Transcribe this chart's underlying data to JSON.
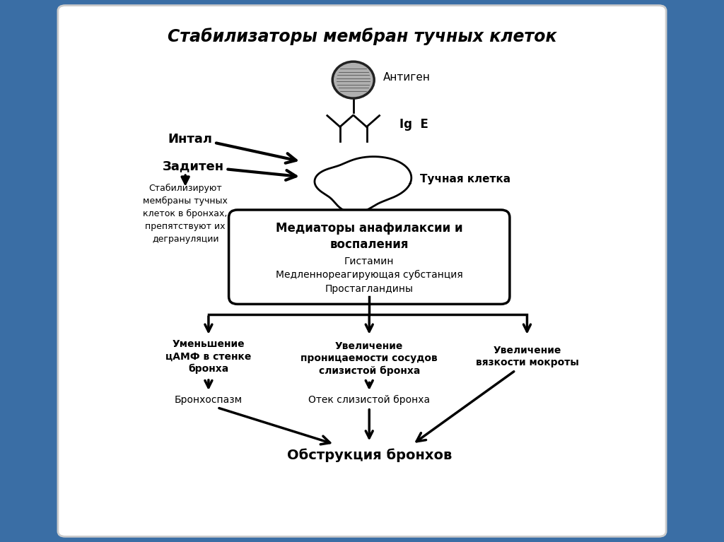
{
  "title": "Стабилизаторы мембран тучных клеток",
  "bg_outer": "#3a6ea5",
  "bg_inner": "#ffffff",
  "text_color": "#000000",
  "antigen_label": "Антиген",
  "ige_label": "Ig  E",
  "mast_cell_label": "Тучная клетка",
  "intal_label": "Интал",
  "zaditen_label": "Задитен",
  "stabilize_text": "Стабилизируют\nмембраны тучных\nклеток в бронхах,\nпрепятствуют их\nдегрануляции",
  "mediators_title": "Медиаторы анафилаксии и\nвоспаления",
  "mediators_list": "Гистамин\nМедленнореагирующая субстанция\nПростагландины",
  "branch1_title": "Уменьшение\nцАМФ в стенке\nбронха",
  "branch2_title": "Увеличение\nпроницаемости сосудов\nслизистой бронха",
  "branch3_title": "Увеличение\nвязкости мокроты",
  "branch1_result": "Бронхоспазм",
  "branch2_result": "Отек слизистой бронха",
  "final_label": "Обструкция бронхов"
}
